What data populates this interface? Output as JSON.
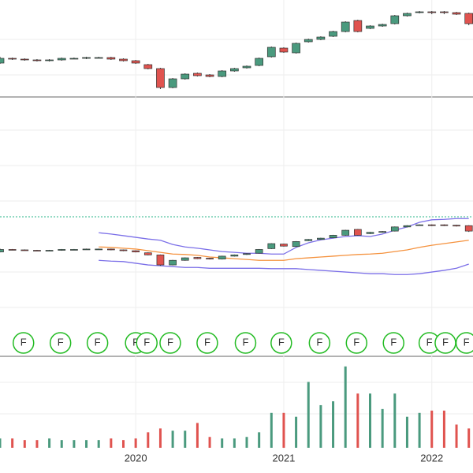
{
  "chart_data": {
    "type": "candlestick",
    "categories": [
      null,
      null,
      null,
      null,
      null,
      null,
      null,
      null,
      null,
      null,
      null,
      "2020",
      null,
      null,
      null,
      null,
      null,
      null,
      null,
      null,
      null,
      null,
      null,
      "2021",
      null,
      null,
      null,
      null,
      null,
      null,
      null,
      null,
      null,
      null,
      null,
      "2022",
      null,
      null,
      null
    ],
    "open": [
      50,
      56,
      55,
      54,
      53,
      54,
      56,
      56,
      57,
      57,
      55,
      53,
      48,
      43,
      19,
      30,
      37,
      35,
      33,
      40,
      44,
      47,
      58,
      69,
      63,
      77,
      80,
      84,
      90,
      104,
      94,
      97,
      100,
      110,
      114,
      115,
      115,
      114,
      113
    ],
    "close": [
      56,
      55,
      54,
      53,
      54,
      56,
      56,
      57,
      57,
      55,
      53,
      50,
      43,
      19,
      30,
      36,
      34,
      33,
      40,
      43,
      46,
      56,
      70,
      64,
      75,
      80,
      83,
      90,
      102,
      90,
      97,
      99,
      110,
      113,
      115,
      114,
      114,
      112,
      100
    ],
    "high": [
      58,
      57,
      56,
      55,
      55,
      57,
      57,
      58,
      58,
      58,
      56,
      54,
      49,
      44,
      31,
      37,
      38,
      36,
      41,
      44,
      47,
      57,
      71,
      70,
      76,
      81,
      84,
      91,
      103,
      105,
      98,
      100,
      111,
      114,
      116,
      116,
      116,
      115,
      114
    ],
    "low": [
      49,
      54,
      53,
      52,
      52,
      53,
      55,
      55,
      56,
      54,
      52,
      49,
      42,
      17,
      18,
      29,
      33,
      32,
      32,
      39,
      43,
      46,
      57,
      63,
      62,
      76,
      79,
      83,
      89,
      89,
      93,
      96,
      99,
      109,
      113,
      112,
      112,
      111,
      98
    ],
    "up_color": "#4a9a7e",
    "down_color": "#e0534f",
    "ylim": [
      7,
      130
    ],
    "bands": {
      "ylim": [
        -196,
        421
      ],
      "series": [
        {
          "color": "#7b6fe8",
          "values": [
            null,
            null,
            null,
            null,
            null,
            null,
            null,
            null,
            96,
            93,
            89,
            85,
            81,
            78,
            68,
            62,
            59,
            55,
            51,
            49,
            47,
            47,
            45,
            45,
            61,
            72,
            79,
            83,
            87,
            89,
            87,
            93,
            102,
            110,
            121,
            127,
            128,
            130,
            130
          ]
        },
        {
          "color": "#f5923e",
          "values": [
            null,
            null,
            null,
            null,
            null,
            null,
            null,
            null,
            62,
            61,
            59,
            57,
            53,
            49,
            45,
            44,
            42,
            38,
            36,
            34,
            32,
            30,
            30,
            30,
            34,
            36,
            38,
            40,
            42,
            44,
            45,
            47,
            51,
            55,
            61,
            66,
            70,
            74,
            78
          ]
        },
        {
          "color": "#7b6fe8",
          "values": [
            null,
            null,
            null,
            null,
            null,
            null,
            null,
            null,
            30,
            28,
            27,
            23,
            19,
            17,
            15,
            13,
            13,
            11,
            11,
            11,
            11,
            11,
            10,
            10,
            10,
            8,
            6,
            4,
            2,
            0,
            -2,
            -2,
            -4,
            -4,
            -2,
            2,
            6,
            11,
            21
          ]
        }
      ]
    },
    "volume": {
      "ylim": [
        0,
        115
      ],
      "values": [
        12,
        12,
        10,
        10,
        12,
        10,
        10,
        10,
        10,
        12,
        10,
        12,
        20,
        25,
        22,
        22,
        32,
        14,
        12,
        12,
        14,
        20,
        45,
        45,
        40,
        85,
        55,
        60,
        105,
        70,
        70,
        50,
        70,
        40,
        45,
        48,
        48,
        30,
        25
      ]
    },
    "events": {
      "color": "#22bb22",
      "x": [
        1.9,
        4.9,
        7.9,
        11,
        11.9,
        13.8,
        16.8,
        19.9,
        22.8,
        25.9,
        28.9,
        31.9,
        34.8,
        36.1,
        37.8
      ],
      "labels": [
        "F",
        "F",
        "F",
        "F",
        "F",
        "F",
        "F",
        "F",
        "F",
        "F",
        "F",
        "F",
        "F",
        "F",
        "F"
      ]
    }
  }
}
